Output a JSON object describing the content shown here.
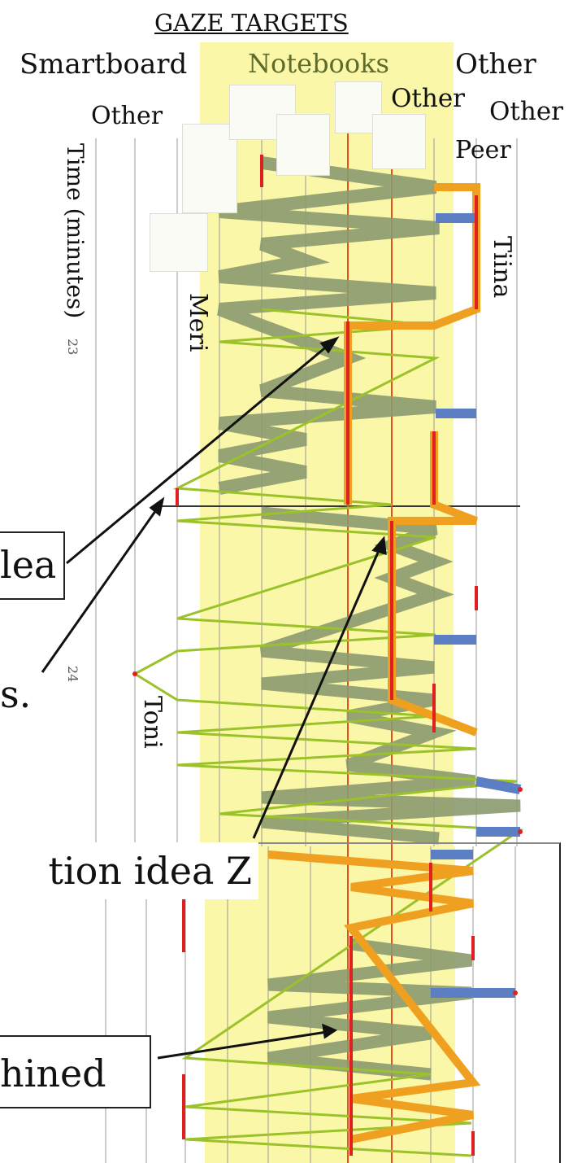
{
  "header": {
    "title": "GAZE TARGETS",
    "targets": {
      "smartboard": "Smartboard",
      "notebooks": "Notebooks",
      "other_top": "Other",
      "other_left": "Other",
      "other_mid": "Other",
      "other_right": "Other",
      "peer": "Peer"
    }
  },
  "axis": {
    "label": "Time (minutes)",
    "ticks": [
      "23",
      "24"
    ]
  },
  "participants": {
    "meri": "Meri",
    "toni": "Toni",
    "tiina": "Tiina"
  },
  "annotations": {
    "box1": "lea",
    "box2": "s.",
    "box3": "tion idea Z",
    "box4": "hined"
  },
  "colors": {
    "highlight": "#fbf7a8",
    "grey_path": "#8b9a6f",
    "green_path": "#9bc22a",
    "orange_path": "#f0a020",
    "blue_path": "#5b7fc2",
    "orange_line": "#e8501a",
    "dot": "#e02020"
  }
}
